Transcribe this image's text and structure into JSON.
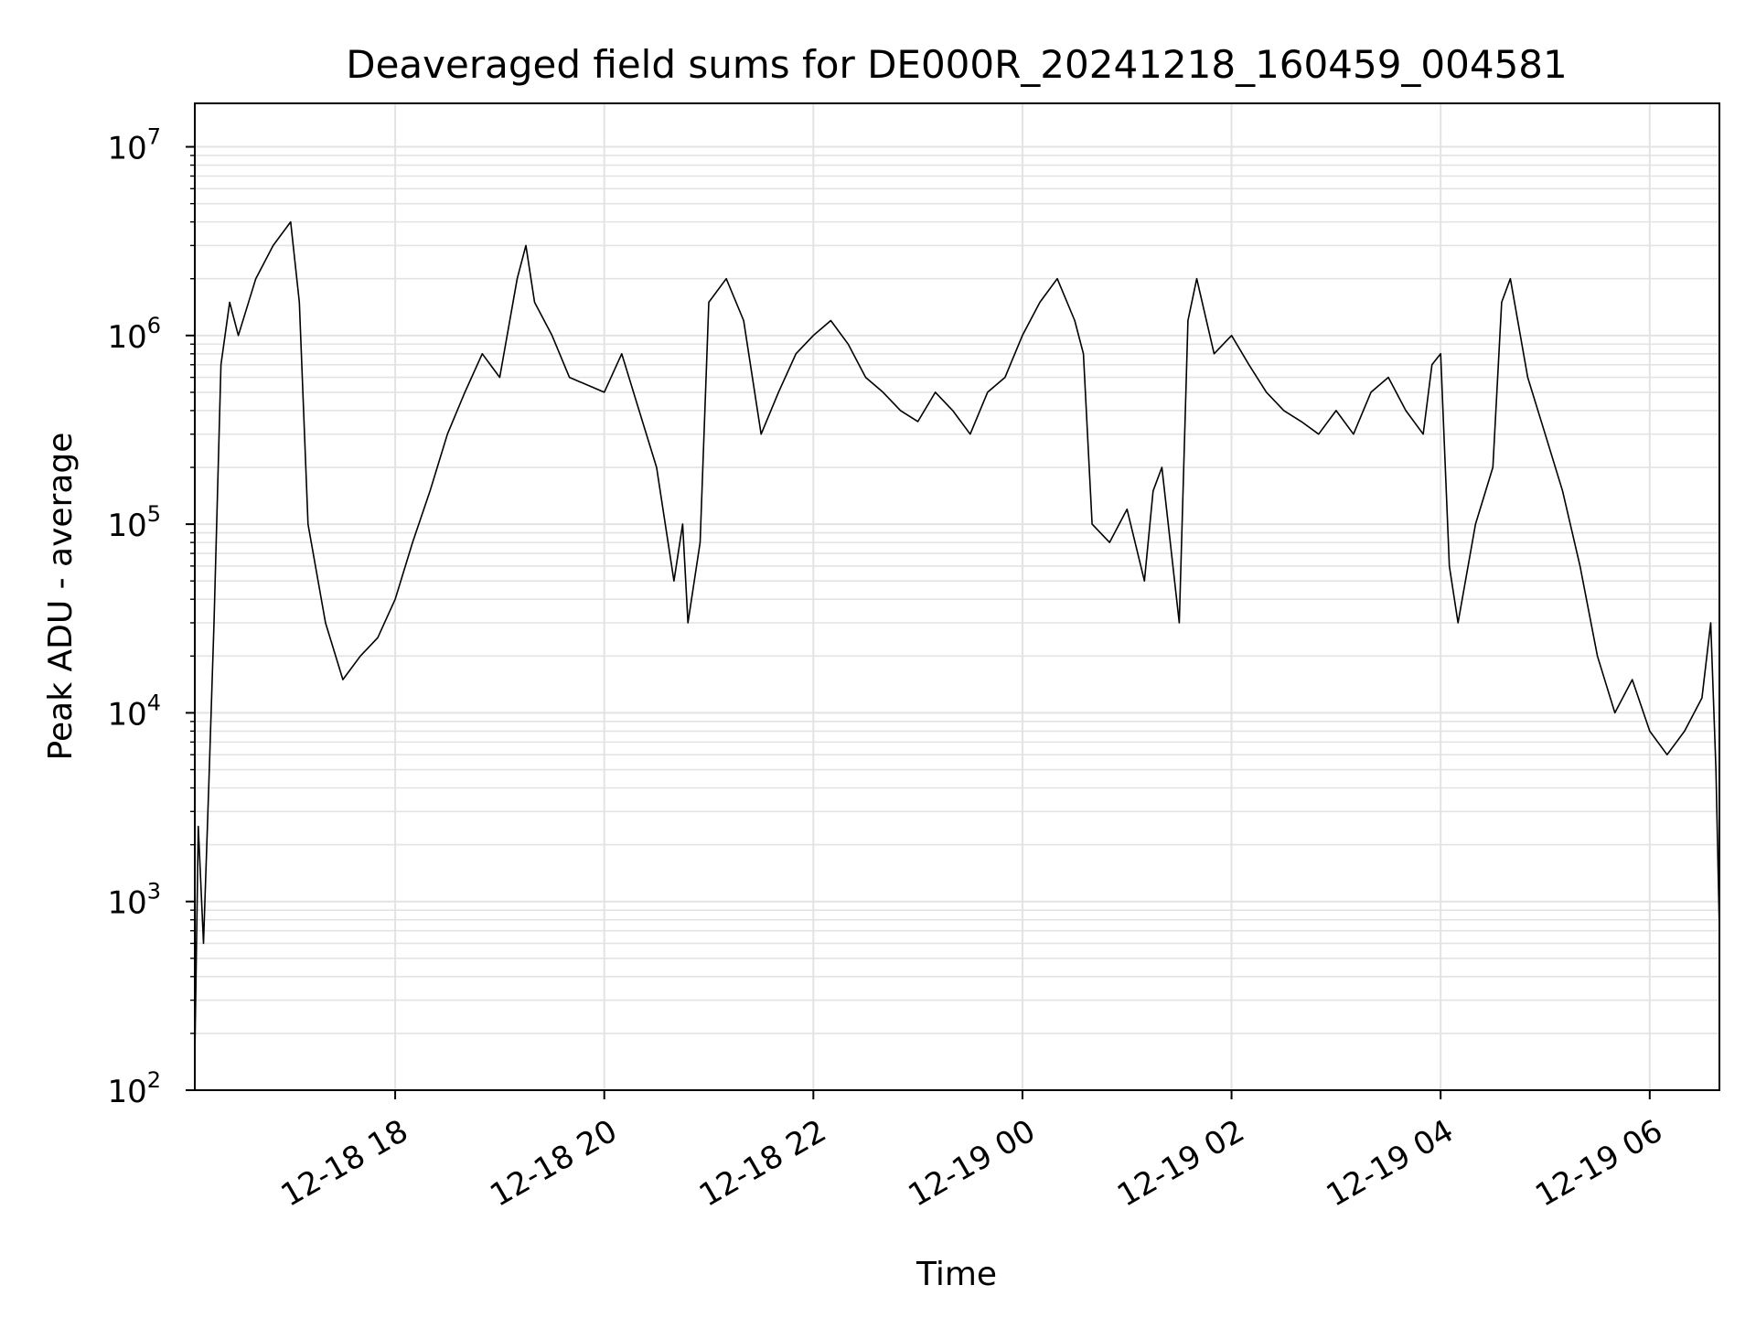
{
  "chart_data": {
    "type": "line",
    "title": "Deaveraged field sums for DE000R_20241218_160459_004581",
    "xlabel": "Time",
    "ylabel": "Peak ADU - average",
    "yscale": "log",
    "ylim": [
      100,
      17000000
    ],
    "xlim": [
      "2024-12-18 16:05",
      "2024-12-19 06:40"
    ],
    "grid": true,
    "line_color": "#000000",
    "x_ticks": [
      {
        "value": "2024-12-18 18:00",
        "label": "12-18 18"
      },
      {
        "value": "2024-12-18 20:00",
        "label": "12-18 20"
      },
      {
        "value": "2024-12-18 22:00",
        "label": "12-18 22"
      },
      {
        "value": "2024-12-19 00:00",
        "label": "12-19 00"
      },
      {
        "value": "2024-12-19 02:00",
        "label": "12-19 02"
      },
      {
        "value": "2024-12-19 04:00",
        "label": "12-19 04"
      },
      {
        "value": "2024-12-19 06:00",
        "label": "12-19 06"
      }
    ],
    "y_ticks": [
      {
        "value": 100,
        "base": "10",
        "exp": "2"
      },
      {
        "value": 1000,
        "base": "10",
        "exp": "3"
      },
      {
        "value": 10000,
        "base": "10",
        "exp": "4"
      },
      {
        "value": 100000,
        "base": "10",
        "exp": "5"
      },
      {
        "value": 1000000,
        "base": "10",
        "exp": "6"
      },
      {
        "value": 10000000,
        "base": "10",
        "exp": "7"
      }
    ],
    "series": [
      {
        "x": [
          "2024-12-18 16:05",
          "2024-12-18 16:07",
          "2024-12-18 16:10",
          "2024-12-18 16:13",
          "2024-12-18 16:16",
          "2024-12-18 16:20",
          "2024-12-18 16:25",
          "2024-12-18 16:30",
          "2024-12-18 16:40",
          "2024-12-18 16:50",
          "2024-12-18 17:00",
          "2024-12-18 17:05",
          "2024-12-18 17:10",
          "2024-12-18 17:20",
          "2024-12-18 17:30",
          "2024-12-18 17:40",
          "2024-12-18 17:50",
          "2024-12-18 18:00",
          "2024-12-18 18:10",
          "2024-12-18 18:20",
          "2024-12-18 18:30",
          "2024-12-18 18:40",
          "2024-12-18 18:50",
          "2024-12-18 19:00",
          "2024-12-18 19:10",
          "2024-12-18 19:15",
          "2024-12-18 19:20",
          "2024-12-18 19:30",
          "2024-12-18 19:40",
          "2024-12-18 20:00",
          "2024-12-18 20:10",
          "2024-12-18 20:20",
          "2024-12-18 20:30",
          "2024-12-18 20:40",
          "2024-12-18 20:45",
          "2024-12-18 20:48",
          "2024-12-18 20:55",
          "2024-12-18 21:00",
          "2024-12-18 21:10",
          "2024-12-18 21:20",
          "2024-12-18 21:30",
          "2024-12-18 21:40",
          "2024-12-18 21:50",
          "2024-12-18 22:00",
          "2024-12-18 22:10",
          "2024-12-18 22:20",
          "2024-12-18 22:30",
          "2024-12-18 22:40",
          "2024-12-18 22:50",
          "2024-12-18 23:00",
          "2024-12-18 23:10",
          "2024-12-18 23:20",
          "2024-12-18 23:30",
          "2024-12-18 23:40",
          "2024-12-18 23:50",
          "2024-12-19 00:00",
          "2024-12-19 00:10",
          "2024-12-19 00:20",
          "2024-12-19 00:30",
          "2024-12-19 00:35",
          "2024-12-19 00:40",
          "2024-12-19 00:50",
          "2024-12-19 01:00",
          "2024-12-19 01:10",
          "2024-12-19 01:15",
          "2024-12-19 01:20",
          "2024-12-19 01:30",
          "2024-12-19 01:35",
          "2024-12-19 01:40",
          "2024-12-19 01:50",
          "2024-12-19 02:00",
          "2024-12-19 02:10",
          "2024-12-19 02:20",
          "2024-12-19 02:30",
          "2024-12-19 02:40",
          "2024-12-19 02:50",
          "2024-12-19 03:00",
          "2024-12-19 03:10",
          "2024-12-19 03:20",
          "2024-12-19 03:30",
          "2024-12-19 03:40",
          "2024-12-19 03:50",
          "2024-12-19 03:55",
          "2024-12-19 04:00",
          "2024-12-19 04:05",
          "2024-12-19 04:10",
          "2024-12-19 04:20",
          "2024-12-19 04:30",
          "2024-12-19 04:35",
          "2024-12-19 04:40",
          "2024-12-19 04:50",
          "2024-12-19 05:00",
          "2024-12-19 05:10",
          "2024-12-19 05:20",
          "2024-12-19 05:30",
          "2024-12-19 05:40",
          "2024-12-19 05:50",
          "2024-12-19 06:00",
          "2024-12-19 06:10",
          "2024-12-19 06:20",
          "2024-12-19 06:30",
          "2024-12-19 06:35",
          "2024-12-19 06:38",
          "2024-12-19 06:40"
        ],
        "y": [
          150,
          2500,
          600,
          4000,
          30000,
          700000,
          1500000,
          1000000,
          2000000,
          3000000,
          4000000,
          1500000,
          100000,
          30000,
          15000,
          20000,
          25000,
          40000,
          80000,
          150000,
          300000,
          500000,
          800000,
          600000,
          2000000,
          3000000,
          1500000,
          1000000,
          600000,
          500000,
          800000,
          400000,
          200000,
          50000,
          100000,
          30000,
          80000,
          1500000,
          2000000,
          1200000,
          300000,
          500000,
          800000,
          1000000,
          1200000,
          900000,
          600000,
          500000,
          400000,
          350000,
          500000,
          400000,
          300000,
          500000,
          600000,
          1000000,
          1500000,
          2000000,
          1200000,
          800000,
          100000,
          80000,
          120000,
          50000,
          150000,
          200000,
          30000,
          1200000,
          2000000,
          800000,
          1000000,
          700000,
          500000,
          400000,
          350000,
          300000,
          400000,
          300000,
          500000,
          600000,
          400000,
          300000,
          700000,
          800000,
          60000,
          30000,
          100000,
          200000,
          1500000,
          2000000,
          600000,
          300000,
          150000,
          60000,
          20000,
          10000,
          15000,
          8000,
          6000,
          8000,
          12000,
          30000,
          5000,
          700
        ]
      }
    ]
  }
}
